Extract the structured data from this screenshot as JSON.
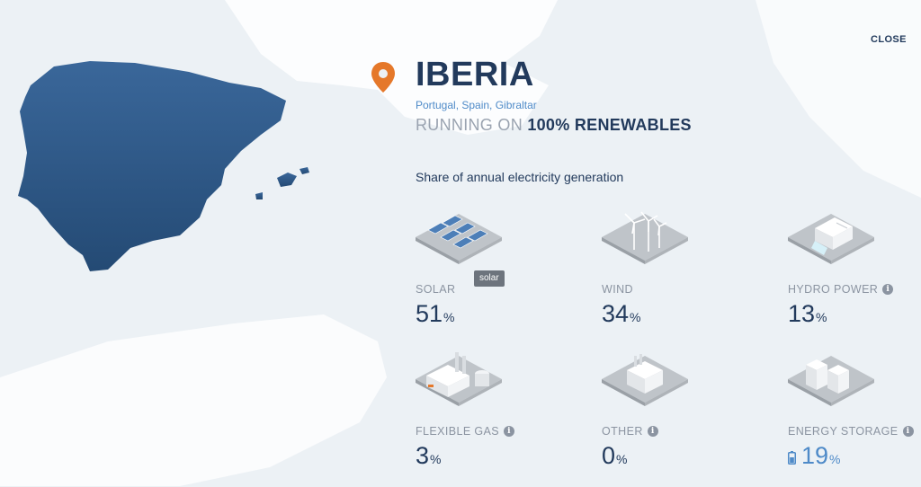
{
  "header": {
    "close_label": "CLOSE"
  },
  "region": {
    "title": "IBERIA",
    "subtitle": "Portugal, Spain, Gibraltar",
    "running_prefix": "RUNNING ON",
    "running_value": "100% RENEWABLES"
  },
  "share_label": "Share of annual electricity generation",
  "sources": [
    {
      "id": "solar",
      "name": "SOLAR",
      "value": "51",
      "unit": "%",
      "icon": "solar-panels-icon",
      "info": false
    },
    {
      "id": "wind",
      "name": "WIND",
      "value": "34",
      "unit": "%",
      "icon": "wind-turbines-icon",
      "info": false
    },
    {
      "id": "hydro",
      "name": "HYDRO POWER",
      "value": "13",
      "unit": "%",
      "icon": "hydro-dam-icon",
      "info": true
    },
    {
      "id": "gas",
      "name": "FLEXIBLE GAS",
      "value": "3",
      "unit": "%",
      "icon": "gas-plant-icon",
      "info": true
    },
    {
      "id": "other",
      "name": "OTHER",
      "value": "0",
      "unit": "%",
      "icon": "other-plant-icon",
      "info": true
    },
    {
      "id": "storage",
      "name": "ENERGY STORAGE",
      "value": "19",
      "unit": "%",
      "icon": "storage-battery-icon",
      "info": true
    }
  ],
  "tooltip": {
    "text": "solar"
  },
  "colors": {
    "accent_orange": "#e5782a",
    "map_fill": "#2e5786",
    "text_dark": "#223a5c",
    "text_muted": "#8b94a1",
    "link_blue": "#4e8ac8"
  }
}
